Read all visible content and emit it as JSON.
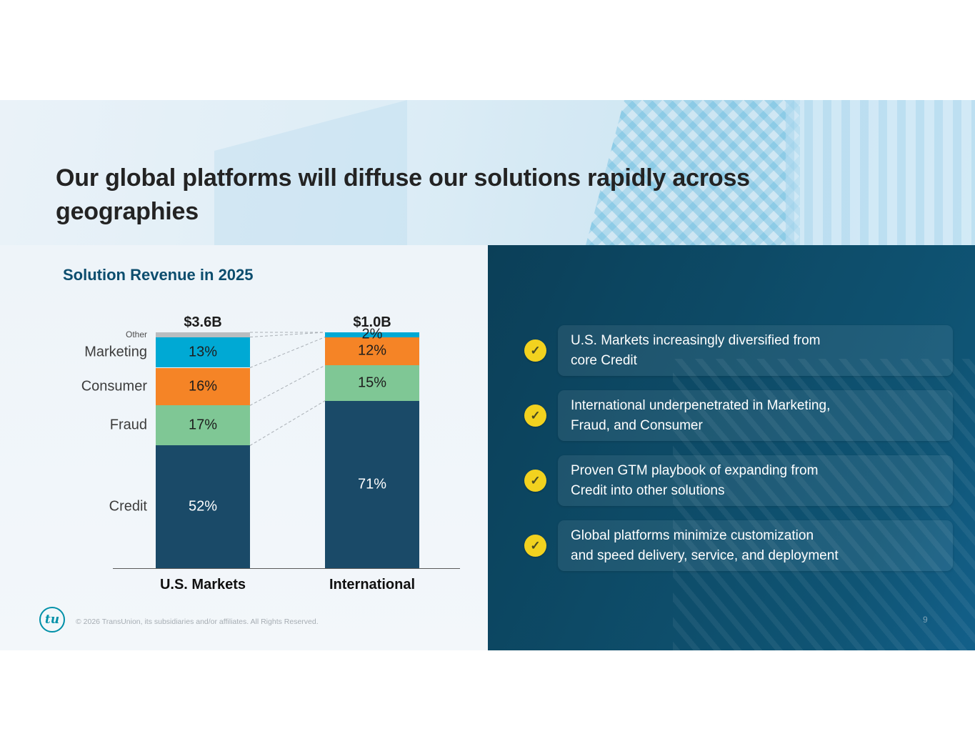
{
  "slide": {
    "title": "Our global platforms will diffuse our solutions rapidly across\ngeographies",
    "footer": "© 2026 TransUnion, its subsidiaries and/or affiliates. All Rights Reserved.",
    "page_number": "9",
    "logo_text": "tu"
  },
  "chart_data": {
    "type": "bar",
    "stacked": true,
    "title": "Solution Revenue in 2025",
    "unit": "%",
    "categories": [
      "U.S. Markets",
      "International"
    ],
    "totals": [
      "$3.6B",
      "$1.0B"
    ],
    "ylim": [
      0,
      100
    ],
    "series": [
      {
        "name": "Credit",
        "values": [
          52,
          71
        ],
        "color": "#1a4a68",
        "label_color": "#ffffff",
        "show_labels": true,
        "small_label": false
      },
      {
        "name": "Fraud",
        "values": [
          17,
          15
        ],
        "color": "#7fc795",
        "label_color": "#1d1d1d",
        "show_labels": true,
        "small_label": false
      },
      {
        "name": "Consumer",
        "values": [
          16,
          12
        ],
        "color": "#f58426",
        "label_color": "#1d1d1d",
        "show_labels": true,
        "small_label": false
      },
      {
        "name": "Marketing",
        "values": [
          13,
          2
        ],
        "color": "#00a9d4",
        "label_color": "#1d1d1d",
        "show_labels": true,
        "small_label": false
      },
      {
        "name": "Other",
        "values": [
          2,
          0
        ],
        "color": "#b9bdc0",
        "label_color": "#1d1d1d",
        "show_labels": false,
        "small_label": true
      }
    ],
    "legend_position": "left-category-labels",
    "connector_lines": "dashed between corresponding segment boundaries"
  },
  "bullets": {
    "check_color": "#f2d21f",
    "items": [
      {
        "text": "U.S. Markets increasingly diversified from\ncore Credit"
      },
      {
        "text": "International underpenetrated in Marketing,\nFraud, and Consumer"
      },
      {
        "text": "Proven GTM playbook of expanding from\nCredit into other solutions"
      },
      {
        "text": "Global platforms minimize customization\nand speed delivery, service, and deployment"
      }
    ]
  }
}
